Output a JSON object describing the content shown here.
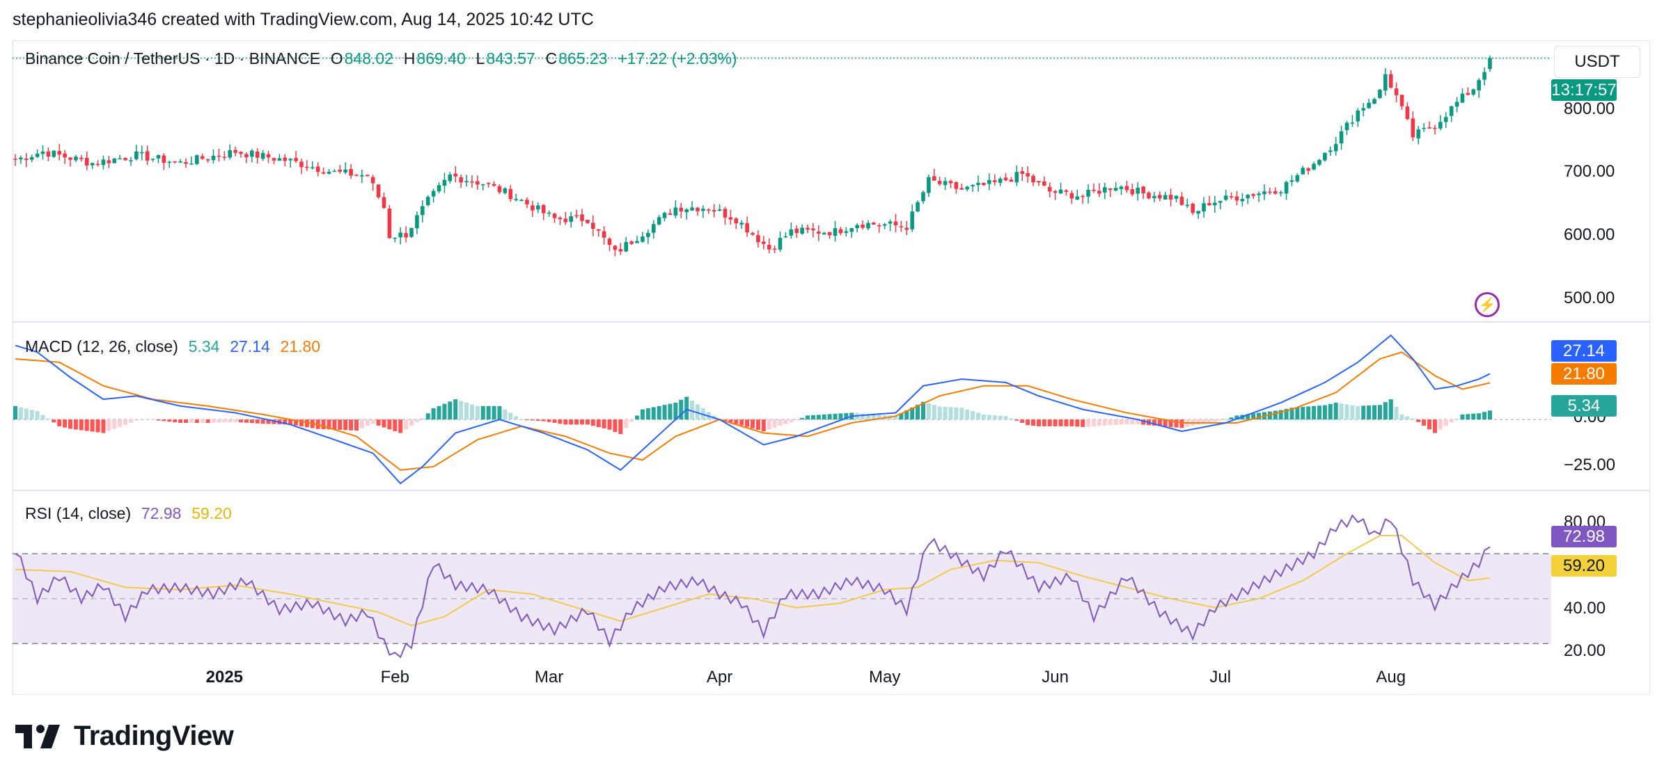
{
  "credit": "stephanieolivia346 created with TradingView.com, Aug 14, 2025 10:42 UTC",
  "brand": "TradingView",
  "currency": "USDT",
  "price_legend": {
    "symbol": "Binance Coin / TetherUS · 1D · BINANCE",
    "o_label": "O",
    "o": "848.02",
    "h_label": "H",
    "h": "869.40",
    "l_label": "L",
    "l": "843.57",
    "c_label": "C",
    "c": "865.23",
    "change": "+17.22 (+2.03%)"
  },
  "macd_legend": {
    "name": "MACD (12, 26, close)",
    "hist": "5.34",
    "macd": "27.14",
    "signal": "21.80"
  },
  "rsi_legend": {
    "name": "RSI (14, close)",
    "rsi": "72.98",
    "ma": "59.20"
  },
  "badges": {
    "countdown": "13:17:57",
    "macd": "27.14",
    "signal": "21.80",
    "hist": "5.34",
    "rsi": "72.98",
    "rsi_ma": "59.20"
  },
  "price_ticks": [
    "800.00",
    "700.00",
    "600.00",
    "500.00"
  ],
  "macd_ticks": [
    "0.00",
    "−25.00"
  ],
  "rsi_ticks": [
    "80.00",
    "40.00",
    "20.00"
  ],
  "x_ticks": [
    {
      "label": "2025",
      "bold": true,
      "day": 38
    },
    {
      "label": "Feb",
      "bold": false,
      "day": 69
    },
    {
      "label": "Mar",
      "bold": false,
      "day": 97
    },
    {
      "label": "Apr",
      "bold": false,
      "day": 128
    },
    {
      "label": "May",
      "bold": false,
      "day": 158
    },
    {
      "label": "Jun",
      "bold": false,
      "day": 189
    },
    {
      "label": "Jul",
      "bold": false,
      "day": 219
    },
    {
      "label": "Aug",
      "bold": false,
      "day": 250
    }
  ],
  "colors": {
    "up": "#089981",
    "down": "#f23645",
    "macd": "#2962ff",
    "signal": "#f57c00",
    "rsi": "#7e57c2",
    "rsi_ma": "#f2c94c",
    "rsi_band": "#ede7f6",
    "hist_up_strong": "#26a69a",
    "hist_up_weak": "#b2dfdb",
    "hist_down_strong": "#ff5252",
    "hist_down_weak": "#ffcdd2"
  },
  "chart_data": [
    {
      "type": "candlestick",
      "title": "Binance Coin / TetherUS · 1D · BINANCE",
      "x": "daily, early Dec 2024 – Aug 14 2025",
      "ylim": [
        455,
        880
      ],
      "anchors": [
        {
          "day": 0,
          "close": 705
        },
        {
          "day": 5,
          "close": 718
        },
        {
          "day": 14,
          "close": 700
        },
        {
          "day": 22,
          "close": 712
        },
        {
          "day": 30,
          "close": 700
        },
        {
          "day": 40,
          "close": 718
        },
        {
          "day": 50,
          "close": 703
        },
        {
          "day": 58,
          "close": 685
        },
        {
          "day": 64,
          "close": 680
        },
        {
          "day": 67,
          "close": 630
        },
        {
          "day": 68,
          "close": 585
        },
        {
          "day": 71,
          "close": 588
        },
        {
          "day": 75,
          "close": 640
        },
        {
          "day": 79,
          "close": 680
        },
        {
          "day": 85,
          "close": 668
        },
        {
          "day": 90,
          "close": 650
        },
        {
          "day": 98,
          "close": 612
        },
        {
          "day": 104,
          "close": 612
        },
        {
          "day": 109,
          "close": 558
        },
        {
          "day": 114,
          "close": 590
        },
        {
          "day": 120,
          "close": 630
        },
        {
          "day": 126,
          "close": 630
        },
        {
          "day": 131,
          "close": 612
        },
        {
          "day": 137,
          "close": 565
        },
        {
          "day": 141,
          "close": 592
        },
        {
          "day": 149,
          "close": 592
        },
        {
          "day": 153,
          "close": 605
        },
        {
          "day": 158,
          "close": 603
        },
        {
          "day": 162,
          "close": 600
        },
        {
          "day": 166,
          "close": 672
        },
        {
          "day": 172,
          "close": 658
        },
        {
          "day": 178,
          "close": 668
        },
        {
          "day": 183,
          "close": 682
        },
        {
          "day": 188,
          "close": 655
        },
        {
          "day": 194,
          "close": 648
        },
        {
          "day": 200,
          "close": 665
        },
        {
          "day": 205,
          "close": 652
        },
        {
          "day": 211,
          "close": 645
        },
        {
          "day": 214,
          "close": 620
        },
        {
          "day": 217,
          "close": 638
        },
        {
          "day": 224,
          "close": 650
        },
        {
          "day": 230,
          "close": 660
        },
        {
          "day": 236,
          "close": 700
        },
        {
          "day": 240,
          "close": 735
        },
        {
          "day": 244,
          "close": 782
        },
        {
          "day": 248,
          "close": 812
        },
        {
          "day": 249,
          "close": 840
        },
        {
          "day": 251,
          "close": 805
        },
        {
          "day": 254,
          "close": 742
        },
        {
          "day": 258,
          "close": 760
        },
        {
          "day": 262,
          "close": 795
        },
        {
          "day": 265,
          "close": 818
        },
        {
          "day": 267,
          "close": 848
        },
        {
          "day": 268,
          "close": 865.23
        }
      ],
      "last": {
        "open": 848.02,
        "high": 869.4,
        "low": 843.57,
        "close": 865.23
      }
    },
    {
      "type": "line",
      "title": "MACD (12, 26, close)",
      "series": [
        {
          "name": "MACD",
          "last": 27.14
        },
        {
          "name": "Signal",
          "last": 21.8
        },
        {
          "name": "Histogram",
          "last": 5.34
        }
      ],
      "ylim": [
        -40,
        55
      ],
      "macd_anchors": [
        {
          "day": 0,
          "value": 44
        },
        {
          "day": 4,
          "value": 40
        },
        {
          "day": 10,
          "value": 25
        },
        {
          "day": 16,
          "value": 12
        },
        {
          "day": 22,
          "value": 14
        },
        {
          "day": 30,
          "value": 8
        },
        {
          "day": 40,
          "value": 4
        },
        {
          "day": 50,
          "value": -3
        },
        {
          "day": 58,
          "value": -12
        },
        {
          "day": 65,
          "value": -20
        },
        {
          "day": 70,
          "value": -38
        },
        {
          "day": 74,
          "value": -28
        },
        {
          "day": 80,
          "value": -8
        },
        {
          "day": 88,
          "value": 0
        },
        {
          "day": 96,
          "value": -8
        },
        {
          "day": 104,
          "value": -18
        },
        {
          "day": 110,
          "value": -30
        },
        {
          "day": 116,
          "value": -12
        },
        {
          "day": 122,
          "value": 6
        },
        {
          "day": 128,
          "value": 0
        },
        {
          "day": 136,
          "value": -15
        },
        {
          "day": 142,
          "value": -10
        },
        {
          "day": 152,
          "value": 2
        },
        {
          "day": 160,
          "value": 4
        },
        {
          "day": 165,
          "value": 20
        },
        {
          "day": 172,
          "value": 24
        },
        {
          "day": 180,
          "value": 22
        },
        {
          "day": 186,
          "value": 14
        },
        {
          "day": 194,
          "value": 6
        },
        {
          "day": 204,
          "value": 0
        },
        {
          "day": 212,
          "value": -7
        },
        {
          "day": 220,
          "value": -2
        },
        {
          "day": 230,
          "value": 10
        },
        {
          "day": 238,
          "value": 22
        },
        {
          "day": 244,
          "value": 34
        },
        {
          "day": 250,
          "value": 50
        },
        {
          "day": 254,
          "value": 36
        },
        {
          "day": 258,
          "value": 18
        },
        {
          "day": 262,
          "value": 20
        },
        {
          "day": 266,
          "value": 24
        },
        {
          "day": 268,
          "value": 27.14
        }
      ],
      "signal_anchors": [
        {
          "day": 0,
          "value": 36
        },
        {
          "day": 8,
          "value": 34
        },
        {
          "day": 16,
          "value": 20
        },
        {
          "day": 25,
          "value": 12
        },
        {
          "day": 35,
          "value": 8
        },
        {
          "day": 45,
          "value": 3
        },
        {
          "day": 55,
          "value": -3
        },
        {
          "day": 62,
          "value": -10
        },
        {
          "day": 70,
          "value": -30
        },
        {
          "day": 76,
          "value": -28
        },
        {
          "day": 84,
          "value": -12
        },
        {
          "day": 92,
          "value": -4
        },
        {
          "day": 100,
          "value": -10
        },
        {
          "day": 108,
          "value": -20
        },
        {
          "day": 114,
          "value": -24
        },
        {
          "day": 120,
          "value": -10
        },
        {
          "day": 128,
          "value": 0
        },
        {
          "day": 136,
          "value": -8
        },
        {
          "day": 144,
          "value": -10
        },
        {
          "day": 152,
          "value": -2
        },
        {
          "day": 160,
          "value": 2
        },
        {
          "day": 168,
          "value": 14
        },
        {
          "day": 176,
          "value": 20
        },
        {
          "day": 184,
          "value": 20
        },
        {
          "day": 192,
          "value": 12
        },
        {
          "day": 202,
          "value": 4
        },
        {
          "day": 212,
          "value": -2
        },
        {
          "day": 222,
          "value": -2
        },
        {
          "day": 232,
          "value": 6
        },
        {
          "day": 240,
          "value": 16
        },
        {
          "day": 248,
          "value": 36
        },
        {
          "day": 252,
          "value": 40
        },
        {
          "day": 258,
          "value": 26
        },
        {
          "day": 263,
          "value": 18
        },
        {
          "day": 268,
          "value": 21.8
        }
      ]
    },
    {
      "type": "line",
      "title": "RSI (14, close)",
      "series": [
        {
          "name": "RSI",
          "last": 72.98
        },
        {
          "name": "RSI MA",
          "last": 59.2
        }
      ],
      "ylim": [
        10,
        96
      ],
      "bands": [
        30,
        50,
        70
      ],
      "rsi_anchors": [
        {
          "day": 0,
          "value": 72
        },
        {
          "day": 4,
          "value": 50
        },
        {
          "day": 8,
          "value": 60
        },
        {
          "day": 12,
          "value": 50
        },
        {
          "day": 16,
          "value": 56
        },
        {
          "day": 20,
          "value": 42
        },
        {
          "day": 24,
          "value": 54
        },
        {
          "day": 30,
          "value": 55
        },
        {
          "day": 36,
          "value": 52
        },
        {
          "day": 42,
          "value": 58
        },
        {
          "day": 48,
          "value": 45
        },
        {
          "day": 54,
          "value": 48
        },
        {
          "day": 60,
          "value": 40
        },
        {
          "day": 64,
          "value": 44
        },
        {
          "day": 67,
          "value": 30
        },
        {
          "day": 69,
          "value": 24
        },
        {
          "day": 72,
          "value": 30
        },
        {
          "day": 76,
          "value": 66
        },
        {
          "day": 80,
          "value": 56
        },
        {
          "day": 86,
          "value": 54
        },
        {
          "day": 92,
          "value": 42
        },
        {
          "day": 98,
          "value": 36
        },
        {
          "day": 104,
          "value": 45
        },
        {
          "day": 108,
          "value": 31
        },
        {
          "day": 112,
          "value": 45
        },
        {
          "day": 118,
          "value": 55
        },
        {
          "day": 124,
          "value": 58
        },
        {
          "day": 128,
          "value": 52
        },
        {
          "day": 132,
          "value": 48
        },
        {
          "day": 136,
          "value": 35
        },
        {
          "day": 140,
          "value": 52
        },
        {
          "day": 146,
          "value": 52
        },
        {
          "day": 152,
          "value": 58
        },
        {
          "day": 158,
          "value": 54
        },
        {
          "day": 162,
          "value": 45
        },
        {
          "day": 166,
          "value": 76
        },
        {
          "day": 170,
          "value": 70
        },
        {
          "day": 176,
          "value": 60
        },
        {
          "day": 180,
          "value": 72
        },
        {
          "day": 186,
          "value": 55
        },
        {
          "day": 192,
          "value": 60
        },
        {
          "day": 196,
          "value": 42
        },
        {
          "day": 202,
          "value": 60
        },
        {
          "day": 208,
          "value": 44
        },
        {
          "day": 214,
          "value": 34
        },
        {
          "day": 218,
          "value": 46
        },
        {
          "day": 224,
          "value": 54
        },
        {
          "day": 230,
          "value": 62
        },
        {
          "day": 236,
          "value": 70
        },
        {
          "day": 240,
          "value": 82
        },
        {
          "day": 244,
          "value": 86
        },
        {
          "day": 247,
          "value": 78
        },
        {
          "day": 250,
          "value": 86
        },
        {
          "day": 254,
          "value": 58
        },
        {
          "day": 258,
          "value": 47
        },
        {
          "day": 262,
          "value": 57
        },
        {
          "day": 266,
          "value": 66
        },
        {
          "day": 268,
          "value": 72.98
        }
      ],
      "ma_anchors": [
        {
          "day": 0,
          "value": 63
        },
        {
          "day": 10,
          "value": 62
        },
        {
          "day": 20,
          "value": 55
        },
        {
          "day": 30,
          "value": 54
        },
        {
          "day": 40,
          "value": 56
        },
        {
          "day": 50,
          "value": 52
        },
        {
          "day": 60,
          "value": 47
        },
        {
          "day": 66,
          "value": 44
        },
        {
          "day": 72,
          "value": 38
        },
        {
          "day": 78,
          "value": 42
        },
        {
          "day": 86,
          "value": 54
        },
        {
          "day": 94,
          "value": 52
        },
        {
          "day": 102,
          "value": 46
        },
        {
          "day": 110,
          "value": 40
        },
        {
          "day": 118,
          "value": 46
        },
        {
          "day": 126,
          "value": 52
        },
        {
          "day": 134,
          "value": 50
        },
        {
          "day": 142,
          "value": 46
        },
        {
          "day": 150,
          "value": 48
        },
        {
          "day": 158,
          "value": 54
        },
        {
          "day": 164,
          "value": 55
        },
        {
          "day": 170,
          "value": 63
        },
        {
          "day": 178,
          "value": 67
        },
        {
          "day": 186,
          "value": 66
        },
        {
          "day": 194,
          "value": 60
        },
        {
          "day": 202,
          "value": 55
        },
        {
          "day": 210,
          "value": 50
        },
        {
          "day": 218,
          "value": 46
        },
        {
          "day": 226,
          "value": 50
        },
        {
          "day": 234,
          "value": 58
        },
        {
          "day": 242,
          "value": 70
        },
        {
          "day": 248,
          "value": 78
        },
        {
          "day": 252,
          "value": 78
        },
        {
          "day": 258,
          "value": 66
        },
        {
          "day": 264,
          "value": 58
        },
        {
          "day": 268,
          "value": 59.2
        }
      ]
    }
  ]
}
